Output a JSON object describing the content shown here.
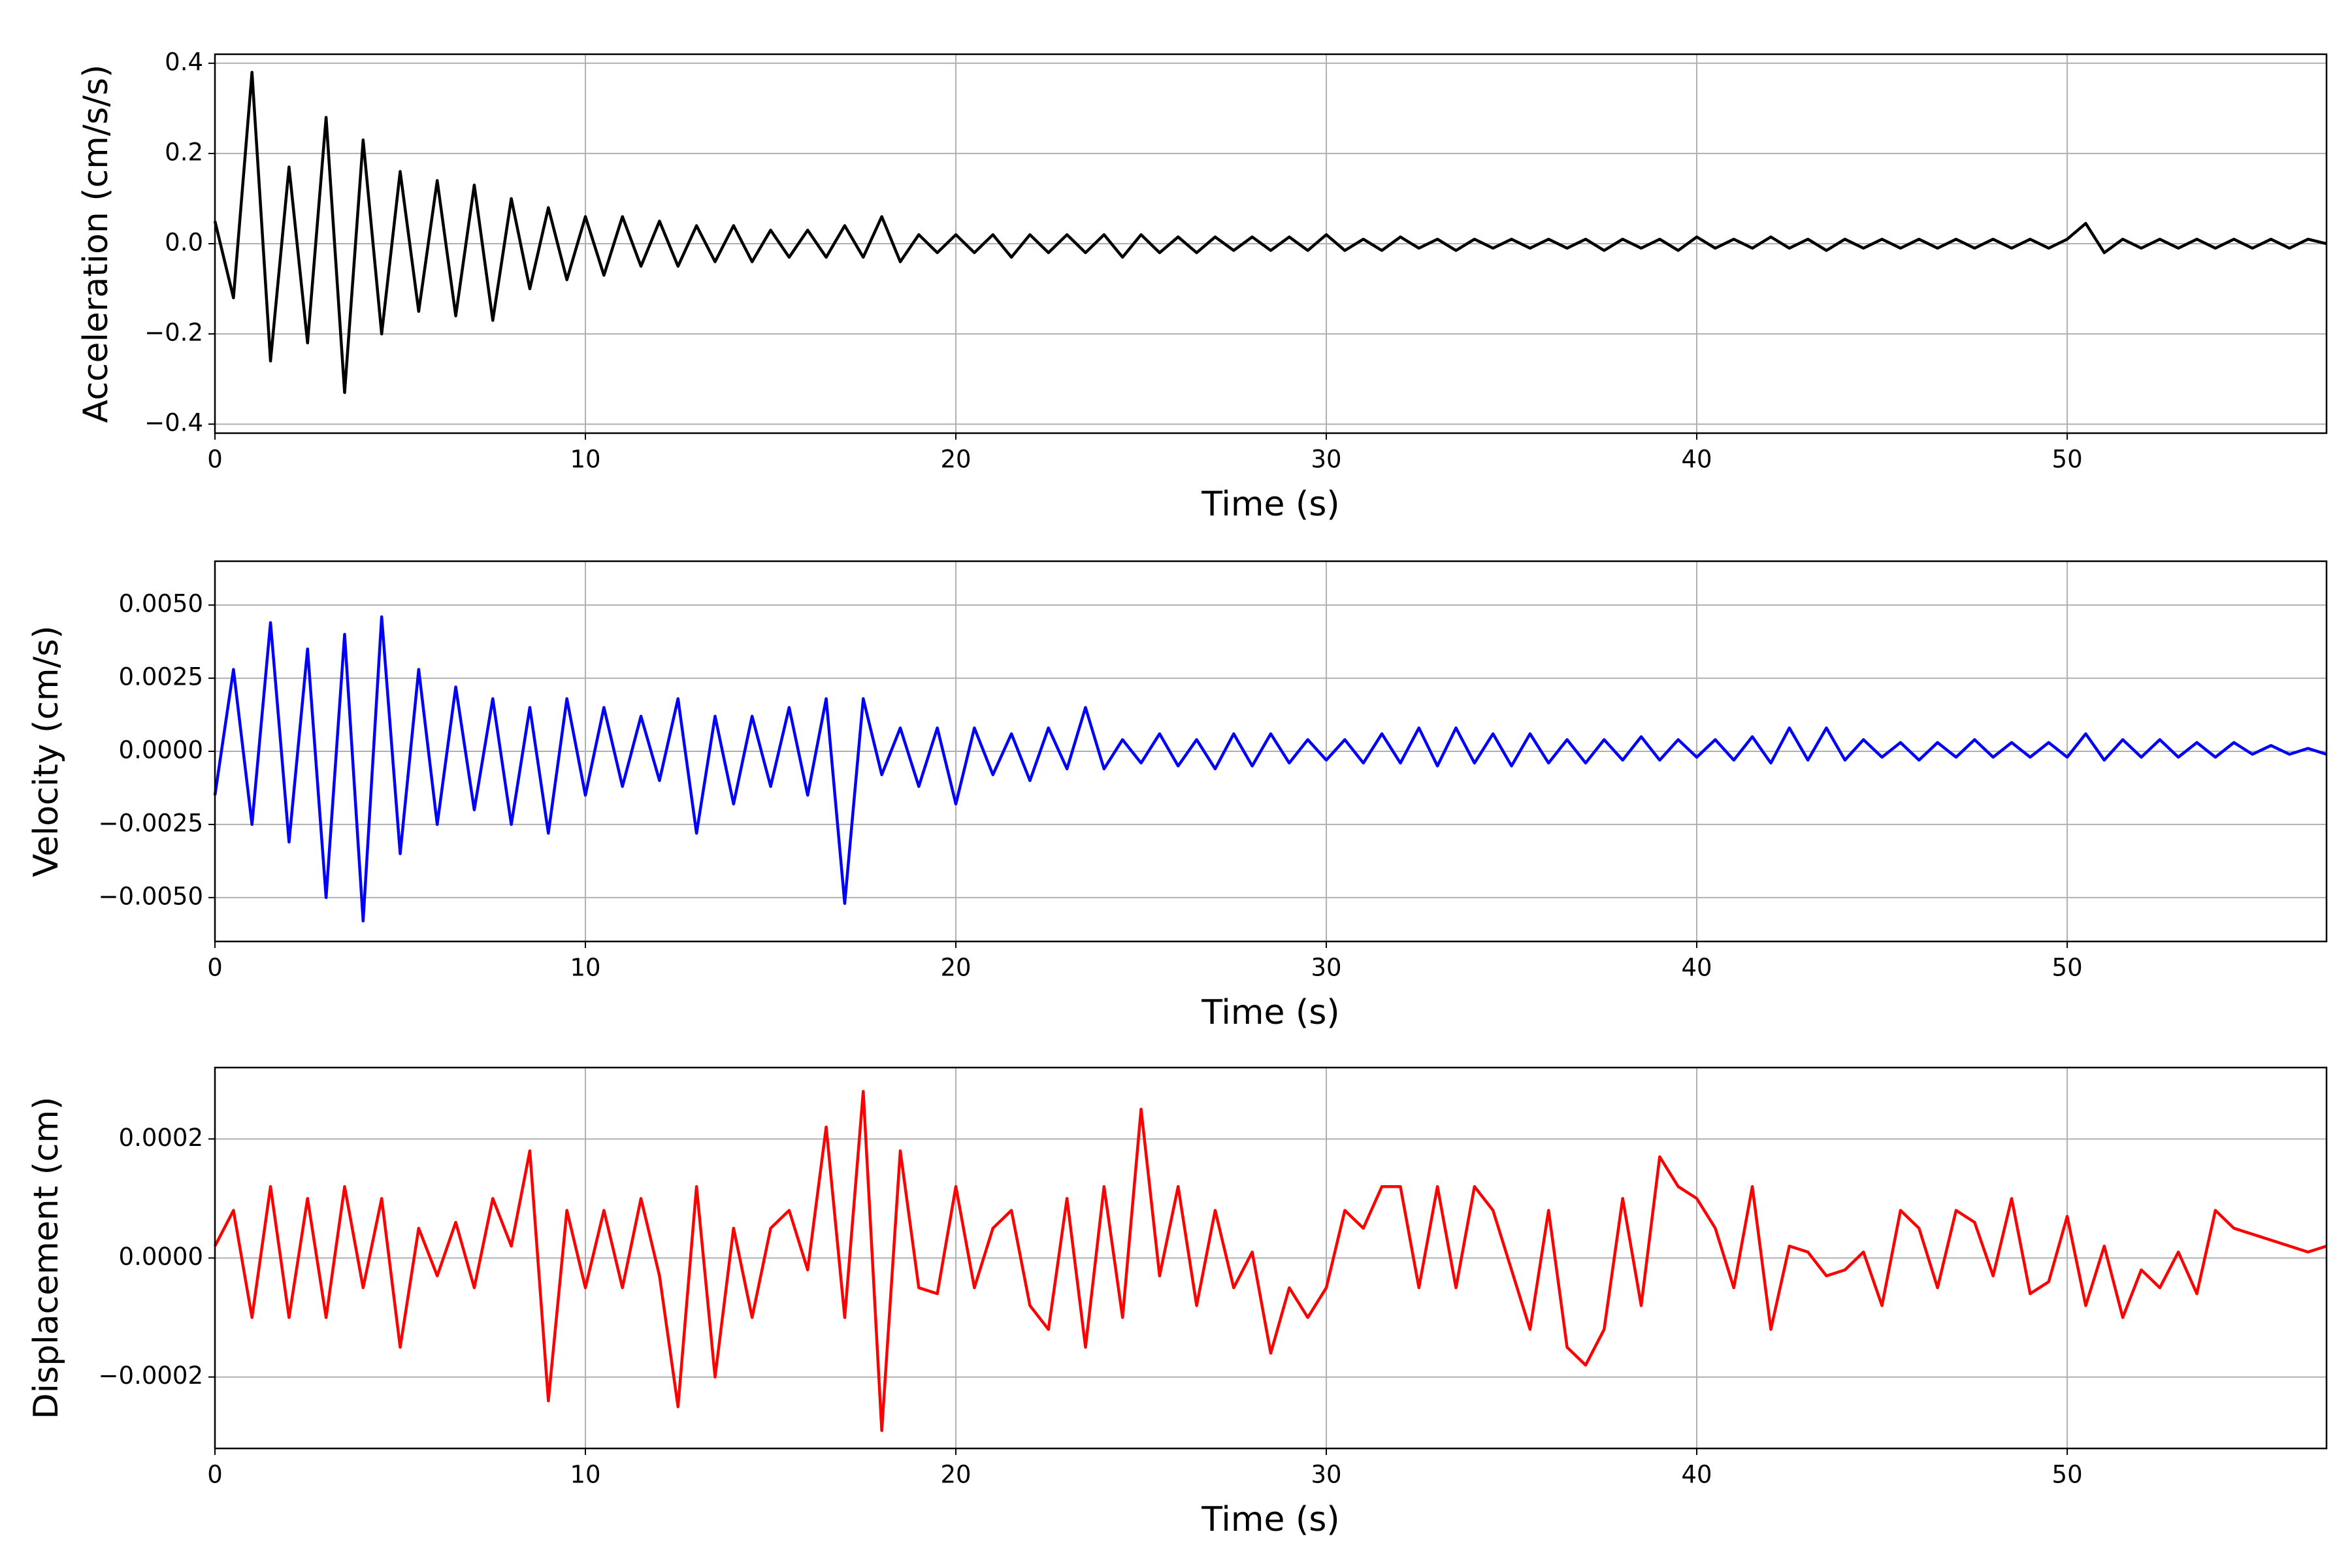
{
  "chart_data": [
    {
      "type": "line",
      "xlabel": "Time (s)",
      "ylabel": "Acceleration (cm/s/s)",
      "color": "#000000",
      "grid": true,
      "xlim": [
        0,
        57
      ],
      "xticks": [
        0,
        10,
        20,
        30,
        40,
        50
      ],
      "ylim": [
        -0.42,
        0.42
      ],
      "yticks": [
        {
          "value": -0.4,
          "label": "−0.4"
        },
        {
          "value": -0.2,
          "label": "−0.2"
        },
        {
          "value": 0,
          "label": "0.0"
        },
        0.2,
        0.4
      ],
      "x": [
        0,
        0.5,
        1,
        1.5,
        2,
        2.5,
        3,
        3.5,
        4,
        4.5,
        5,
        5.5,
        6,
        6.5,
        7,
        7.5,
        8,
        8.5,
        9,
        9.5,
        10,
        10.5,
        11,
        11.5,
        12,
        12.5,
        13,
        13.5,
        14,
        14.5,
        15,
        15.5,
        16,
        16.5,
        17,
        17.5,
        18,
        18.5,
        19,
        19.5,
        20,
        20.5,
        21,
        21.5,
        22,
        22.5,
        23,
        23.5,
        24,
        24.5,
        25,
        25.5,
        26,
        26.5,
        27,
        27.5,
        28,
        28.5,
        29,
        29.5,
        30,
        30.5,
        31,
        31.5,
        32,
        32.5,
        33,
        33.5,
        34,
        34.5,
        35,
        35.5,
        36,
        36.5,
        37,
        37.5,
        38,
        38.5,
        39,
        39.5,
        40,
        40.5,
        41,
        41.5,
        42,
        42.5,
        43,
        43.5,
        44,
        44.5,
        45,
        45.5,
        46,
        46.5,
        47,
        47.5,
        48,
        48.5,
        49,
        49.5,
        50,
        50.5,
        51,
        51.5,
        52,
        52.5,
        53,
        53.5,
        54,
        54.5,
        55,
        55.5,
        56,
        56.5,
        57
      ],
      "values": [
        0.05,
        -0.12,
        0.38,
        -0.26,
        0.17,
        -0.22,
        0.28,
        -0.33,
        0.23,
        -0.2,
        0.16,
        -0.15,
        0.14,
        -0.16,
        0.13,
        -0.17,
        0.1,
        -0.1,
        0.08,
        -0.08,
        0.06,
        -0.07,
        0.06,
        -0.05,
        0.05,
        -0.05,
        0.04,
        -0.04,
        0.04,
        -0.04,
        0.03,
        -0.03,
        0.03,
        -0.03,
        0.04,
        -0.03,
        0.06,
        -0.04,
        0.02,
        -0.02,
        0.02,
        -0.02,
        0.02,
        -0.03,
        0.02,
        -0.02,
        0.02,
        -0.02,
        0.02,
        -0.03,
        0.02,
        -0.02,
        0.015,
        -0.02,
        0.015,
        -0.015,
        0.015,
        -0.015,
        0.015,
        -0.015,
        0.02,
        -0.015,
        0.01,
        -0.015,
        0.015,
        -0.01,
        0.01,
        -0.015,
        0.01,
        -0.01,
        0.01,
        -0.01,
        0.01,
        -0.01,
        0.01,
        -0.015,
        0.01,
        -0.01,
        0.01,
        -0.015,
        0.015,
        -0.01,
        0.01,
        -0.01,
        0.015,
        -0.01,
        0.01,
        -0.015,
        0.01,
        -0.01,
        0.01,
        -0.01,
        0.01,
        -0.01,
        0.01,
        -0.01,
        0.01,
        -0.01,
        0.01,
        -0.01,
        0.01,
        0.045,
        -0.02,
        0.01,
        -0.01,
        0.01,
        -0.01,
        0.01,
        -0.01,
        0.01,
        -0.01,
        0.01,
        -0.01,
        0.01,
        0
      ]
    },
    {
      "type": "line",
      "xlabel": "Time (s)",
      "ylabel": "Velocity (cm/s)",
      "color": "#0000ff",
      "grid": true,
      "xlim": [
        0,
        57
      ],
      "xticks": [
        0,
        10,
        20,
        30,
        40,
        50
      ],
      "ylim": [
        -0.0065,
        0.0065
      ],
      "yticks": [
        {
          "value": -0.005,
          "label": "−0.0050"
        },
        {
          "value": -0.0025,
          "label": "−0.0025"
        },
        {
          "value": 0,
          "label": "0.0000"
        },
        {
          "value": 0.0025,
          "label": "0.0025"
        },
        {
          "value": 0.005,
          "label": "0.0050"
        }
      ],
      "x": [
        0,
        0.5,
        1,
        1.5,
        2,
        2.5,
        3,
        3.5,
        4,
        4.5,
        5,
        5.5,
        6,
        6.5,
        7,
        7.5,
        8,
        8.5,
        9,
        9.5,
        10,
        10.5,
        11,
        11.5,
        12,
        12.5,
        13,
        13.5,
        14,
        14.5,
        15,
        15.5,
        16,
        16.5,
        17,
        17.5,
        18,
        18.5,
        19,
        19.5,
        20,
        20.5,
        21,
        21.5,
        22,
        22.5,
        23,
        23.5,
        24,
        24.5,
        25,
        25.5,
        26,
        26.5,
        27,
        27.5,
        28,
        28.5,
        29,
        29.5,
        30,
        30.5,
        31,
        31.5,
        32,
        32.5,
        33,
        33.5,
        34,
        34.5,
        35,
        35.5,
        36,
        36.5,
        37,
        37.5,
        38,
        38.5,
        39,
        39.5,
        40,
        40.5,
        41,
        41.5,
        42,
        42.5,
        43,
        43.5,
        44,
        44.5,
        45,
        45.5,
        46,
        46.5,
        47,
        47.5,
        48,
        48.5,
        49,
        49.5,
        50,
        50.5,
        51,
        51.5,
        52,
        52.5,
        53,
        53.5,
        54,
        54.5,
        55,
        55.5,
        56,
        56.5,
        57
      ],
      "values": [
        -0.0015,
        0.0028,
        -0.0025,
        0.0044,
        -0.0031,
        0.0035,
        -0.005,
        0.004,
        -0.0058,
        0.0046,
        -0.0035,
        0.0028,
        -0.0025,
        0.0022,
        -0.002,
        0.0018,
        -0.0025,
        0.0015,
        -0.0028,
        0.0018,
        -0.0015,
        0.0015,
        -0.0012,
        0.0012,
        -0.001,
        0.0018,
        -0.0028,
        0.0012,
        -0.0018,
        0.0012,
        -0.0012,
        0.0015,
        -0.0015,
        0.0018,
        -0.0052,
        0.0018,
        -0.0008,
        0.0008,
        -0.0012,
        0.0008,
        -0.0018,
        0.0008,
        -0.0008,
        0.0006,
        -0.001,
        0.0008,
        -0.0006,
        0.0015,
        -0.0006,
        0.0004,
        -0.0004,
        0.0006,
        -0.0005,
        0.0004,
        -0.0006,
        0.0006,
        -0.0005,
        0.0006,
        -0.0004,
        0.0004,
        -0.0003,
        0.0004,
        -0.0004,
        0.0006,
        -0.0004,
        0.0008,
        -0.0005,
        0.0008,
        -0.0004,
        0.0006,
        -0.0005,
        0.0006,
        -0.0004,
        0.0004,
        -0.0004,
        0.0004,
        -0.0003,
        0.0005,
        -0.0003,
        0.0004,
        -0.0002,
        0.0004,
        -0.0003,
        0.0005,
        -0.0004,
        0.0008,
        -0.0003,
        0.0008,
        -0.0003,
        0.0004,
        -0.0002,
        0.0003,
        -0.0003,
        0.0003,
        -0.0002,
        0.0004,
        -0.0002,
        0.0003,
        -0.0002,
        0.0003,
        -0.0002,
        0.0006,
        -0.0003,
        0.0004,
        -0.0002,
        0.0004,
        -0.0002,
        0.0003,
        -0.0002,
        0.0003,
        -0.0001,
        0.0002,
        -0.0001,
        0.0001,
        -0.0001
      ]
    },
    {
      "type": "line",
      "xlabel": "Time (s)",
      "ylabel": "Displacement (cm)",
      "color": "#ff0000",
      "grid": true,
      "xlim": [
        0,
        57
      ],
      "xticks": [
        0,
        10,
        20,
        30,
        40,
        50
      ],
      "ylim": [
        -0.00032,
        0.00032
      ],
      "yticks": [
        {
          "value": -0.0002,
          "label": "−0.0002"
        },
        {
          "value": 0,
          "label": "0.0000"
        },
        {
          "value": 0.0002,
          "label": "0.0002"
        }
      ],
      "x": [
        0,
        0.5,
        1,
        1.5,
        2,
        2.5,
        3,
        3.5,
        4,
        4.5,
        5,
        5.5,
        6,
        6.5,
        7,
        7.5,
        8,
        8.5,
        9,
        9.5,
        10,
        10.5,
        11,
        11.5,
        12,
        12.5,
        13,
        13.5,
        14,
        14.5,
        15,
        15.5,
        16,
        16.5,
        17,
        17.5,
        18,
        18.5,
        19,
        19.5,
        20,
        20.5,
        21,
        21.5,
        22,
        22.5,
        23,
        23.5,
        24,
        24.5,
        25,
        25.5,
        26,
        26.5,
        27,
        27.5,
        28,
        28.5,
        29,
        29.5,
        30,
        30.5,
        31,
        31.5,
        32,
        32.5,
        33,
        33.5,
        34,
        34.5,
        35,
        35.5,
        36,
        36.5,
        37,
        37.5,
        38,
        38.5,
        39,
        39.5,
        40,
        40.5,
        41,
        41.5,
        42,
        42.5,
        43,
        43.5,
        44,
        44.5,
        45,
        45.5,
        46,
        46.5,
        47,
        47.5,
        48,
        48.5,
        49,
        49.5,
        50,
        50.5,
        51,
        51.5,
        52,
        52.5,
        53,
        53.5,
        54,
        54.5,
        55,
        55.5,
        56,
        56.5,
        57
      ],
      "values": [
        2e-05,
        8e-05,
        -0.0001,
        0.00012,
        -0.0001,
        0.0001,
        -0.0001,
        0.00012,
        -5e-05,
        0.0001,
        -0.00015,
        5e-05,
        -3e-05,
        6e-05,
        -5e-05,
        0.0001,
        2e-05,
        0.00018,
        -0.00024,
        8e-05,
        -5e-05,
        8e-05,
        -5e-05,
        0.0001,
        -3e-05,
        -0.00025,
        0.00012,
        -0.0002,
        5e-05,
        -0.0001,
        5e-05,
        8e-05,
        -2e-05,
        0.00022,
        -0.0001,
        0.00028,
        -0.00029,
        0.00018,
        -5e-05,
        -6e-05,
        0.00012,
        -5e-05,
        5e-05,
        8e-05,
        -8e-05,
        -0.00012,
        0.0001,
        -0.00015,
        0.00012,
        -0.0001,
        0.00025,
        -3e-05,
        0.00012,
        -8e-05,
        8e-05,
        -5e-05,
        1e-05,
        -0.00016,
        -5e-05,
        -0.0001,
        -5e-05,
        8e-05,
        5e-05,
        0.00012,
        0.00012,
        -5e-05,
        0.00012,
        -5e-05,
        0.00012,
        8e-05,
        -2e-05,
        -0.00012,
        8e-05,
        -0.00015,
        -0.00018,
        -0.00012,
        0.0001,
        -8e-05,
        0.00017,
        0.00012,
        0.0001,
        5e-05,
        -5e-05,
        0.00012,
        -0.00012,
        2e-05,
        1e-05,
        -3e-05,
        -2e-05,
        1e-05,
        -8e-05,
        8e-05,
        5e-05,
        -5e-05,
        8e-05,
        6e-05,
        -3e-05,
        0.0001,
        -6e-05,
        -4e-05,
        7e-05,
        -8e-05,
        2e-05,
        -0.0001,
        -2e-05,
        -5e-05,
        1e-05,
        -6e-05,
        8e-05,
        5e-05,
        4e-05,
        3e-05,
        2e-05,
        1e-05,
        2e-05
      ]
    }
  ]
}
